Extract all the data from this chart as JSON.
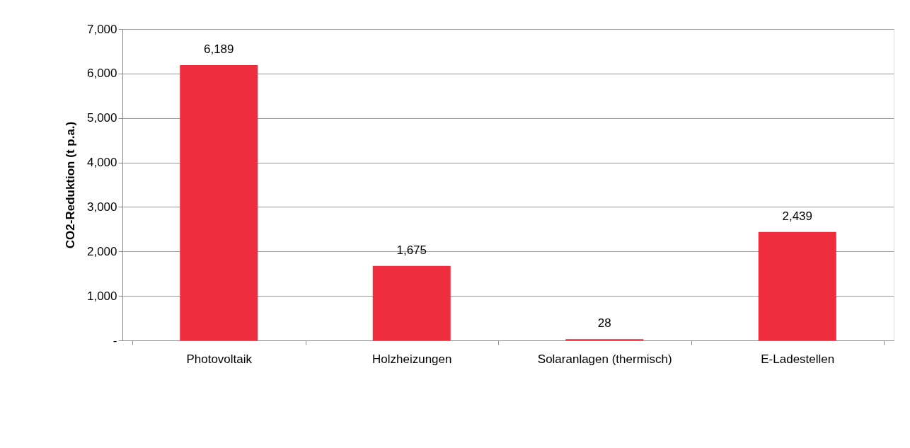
{
  "chart_data": {
    "type": "bar",
    "ylabel": "CO2-Reduktion (t p.a.)",
    "categories": [
      "Photovoltaik",
      "Holzheizungen",
      "Solaranlagen (thermisch)",
      "E-Ladestellen"
    ],
    "values": [
      6189,
      1675,
      28,
      2439
    ],
    "value_labels": [
      "6,189",
      "1,675",
      "28",
      "2,439"
    ],
    "color": "#ee2e3f",
    "ylim": [
      0,
      7000
    ],
    "yticks": [
      {
        "value": 0,
        "label": "-"
      },
      {
        "value": 1000,
        "label": "1,000"
      },
      {
        "value": 2000,
        "label": "2,000"
      },
      {
        "value": 3000,
        "label": "3,000"
      },
      {
        "value": 4000,
        "label": "4,000"
      },
      {
        "value": 5000,
        "label": "5,000"
      },
      {
        "value": 6000,
        "label": "6,000"
      },
      {
        "value": 7000,
        "label": "7,000"
      }
    ],
    "grid": "y"
  }
}
